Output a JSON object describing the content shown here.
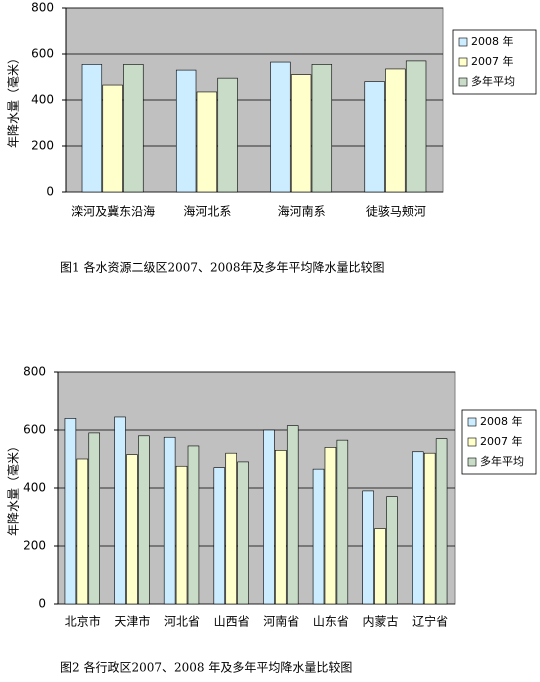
{
  "chart_data": [
    {
      "type": "bar",
      "caption": "图1  各水资源二级区2007、2008年及多年平均降水量比较图",
      "y_label": "年降水量（毫米）",
      "categories": [
        "滦河及冀东沿海",
        "海河北系",
        "海河南系",
        "徒骇马颊河"
      ],
      "series": [
        {
          "name": "2008 年",
          "color": "#ccecff",
          "values": [
            555,
            530,
            565,
            480
          ]
        },
        {
          "name": "2007 年",
          "color": "#ffffcc",
          "values": [
            465,
            435,
            510,
            535
          ]
        },
        {
          "name": "多年平均",
          "color": "#c8dcc8",
          "values": [
            555,
            495,
            555,
            570
          ]
        }
      ],
      "ylim": [
        0,
        800
      ],
      "yticks": [
        0,
        200,
        400,
        600,
        800
      ],
      "grid": true,
      "legend": "right"
    },
    {
      "type": "bar",
      "caption": "图2  各行政区2007、2008 年及多年平均降水量比较图",
      "y_label": "年降水量（毫米）",
      "categories": [
        "北京市",
        "天津市",
        "河北省",
        "山西省",
        "河南省",
        "山东省",
        "内蒙古",
        "辽宁省"
      ],
      "series": [
        {
          "name": "2008 年",
          "color": "#ccecff",
          "values": [
            640,
            645,
            575,
            470,
            600,
            465,
            390,
            525
          ]
        },
        {
          "name": "2007 年",
          "color": "#ffffcc",
          "values": [
            500,
            515,
            475,
            520,
            530,
            540,
            260,
            520
          ]
        },
        {
          "name": "多年平均",
          "color": "#c8dcc8",
          "values": [
            590,
            580,
            545,
            490,
            615,
            565,
            370,
            570
          ]
        }
      ],
      "ylim": [
        0,
        800
      ],
      "yticks": [
        0,
        200,
        400,
        600,
        800
      ],
      "grid": true,
      "legend": "right"
    }
  ]
}
